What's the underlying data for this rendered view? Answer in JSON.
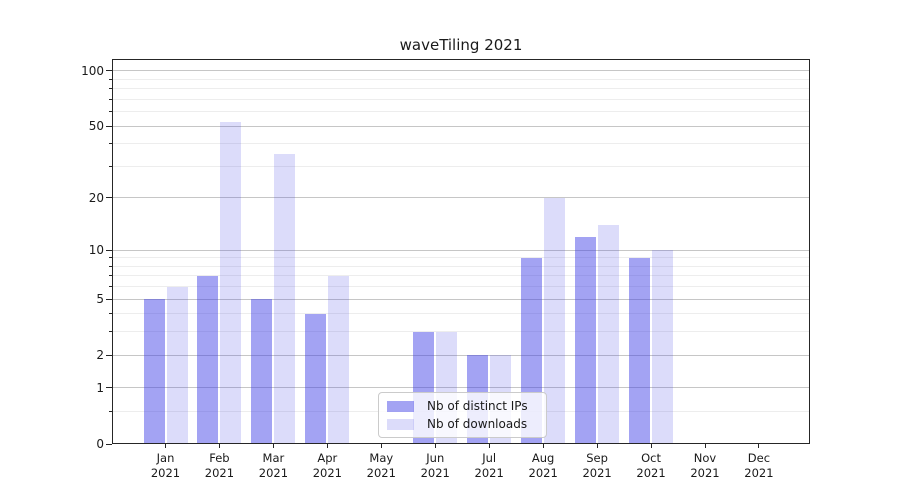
{
  "title": "waveTiling 2021",
  "chart_data": {
    "type": "bar",
    "title": "waveTiling 2021",
    "categories": [
      "Jan 2021",
      "Feb 2021",
      "Mar 2021",
      "Apr 2021",
      "May 2021",
      "Jun 2021",
      "Jul 2021",
      "Aug 2021",
      "Sep 2021",
      "Oct 2021",
      "Nov 2021",
      "Dec 2021"
    ],
    "series": [
      {
        "name": "Nb of distinct IPs",
        "color": "rgba(60,60,230,0.47)",
        "values": [
          5,
          7,
          5,
          4,
          0,
          3,
          2,
          9,
          12,
          9,
          0,
          0
        ]
      },
      {
        "name": "Nb of downloads",
        "color": "rgba(60,60,230,0.18)",
        "values": [
          6,
          53,
          35,
          7,
          0,
          3,
          2,
          20,
          14,
          10,
          0,
          0
        ]
      }
    ],
    "xlabel": "",
    "ylabel": "",
    "yscale": "log10(value+1)",
    "ylim": [
      0,
      116
    ],
    "yticks": [
      0,
      1,
      2,
      5,
      10,
      20,
      50,
      100
    ],
    "minor_gridlines": [
      0.5,
      3,
      4,
      6,
      7,
      8,
      9,
      30,
      40,
      60,
      70,
      80,
      90
    ],
    "grid": true,
    "legend_position": "lower center"
  },
  "colors": {
    "bar_distinct_ips": "#a2a2f2",
    "bar_downloads": "#dcdcf9",
    "major_grid": "#c6c6c6",
    "minor_grid": "#ededed",
    "spine": "#262626",
    "text": "#1a1a1a"
  }
}
